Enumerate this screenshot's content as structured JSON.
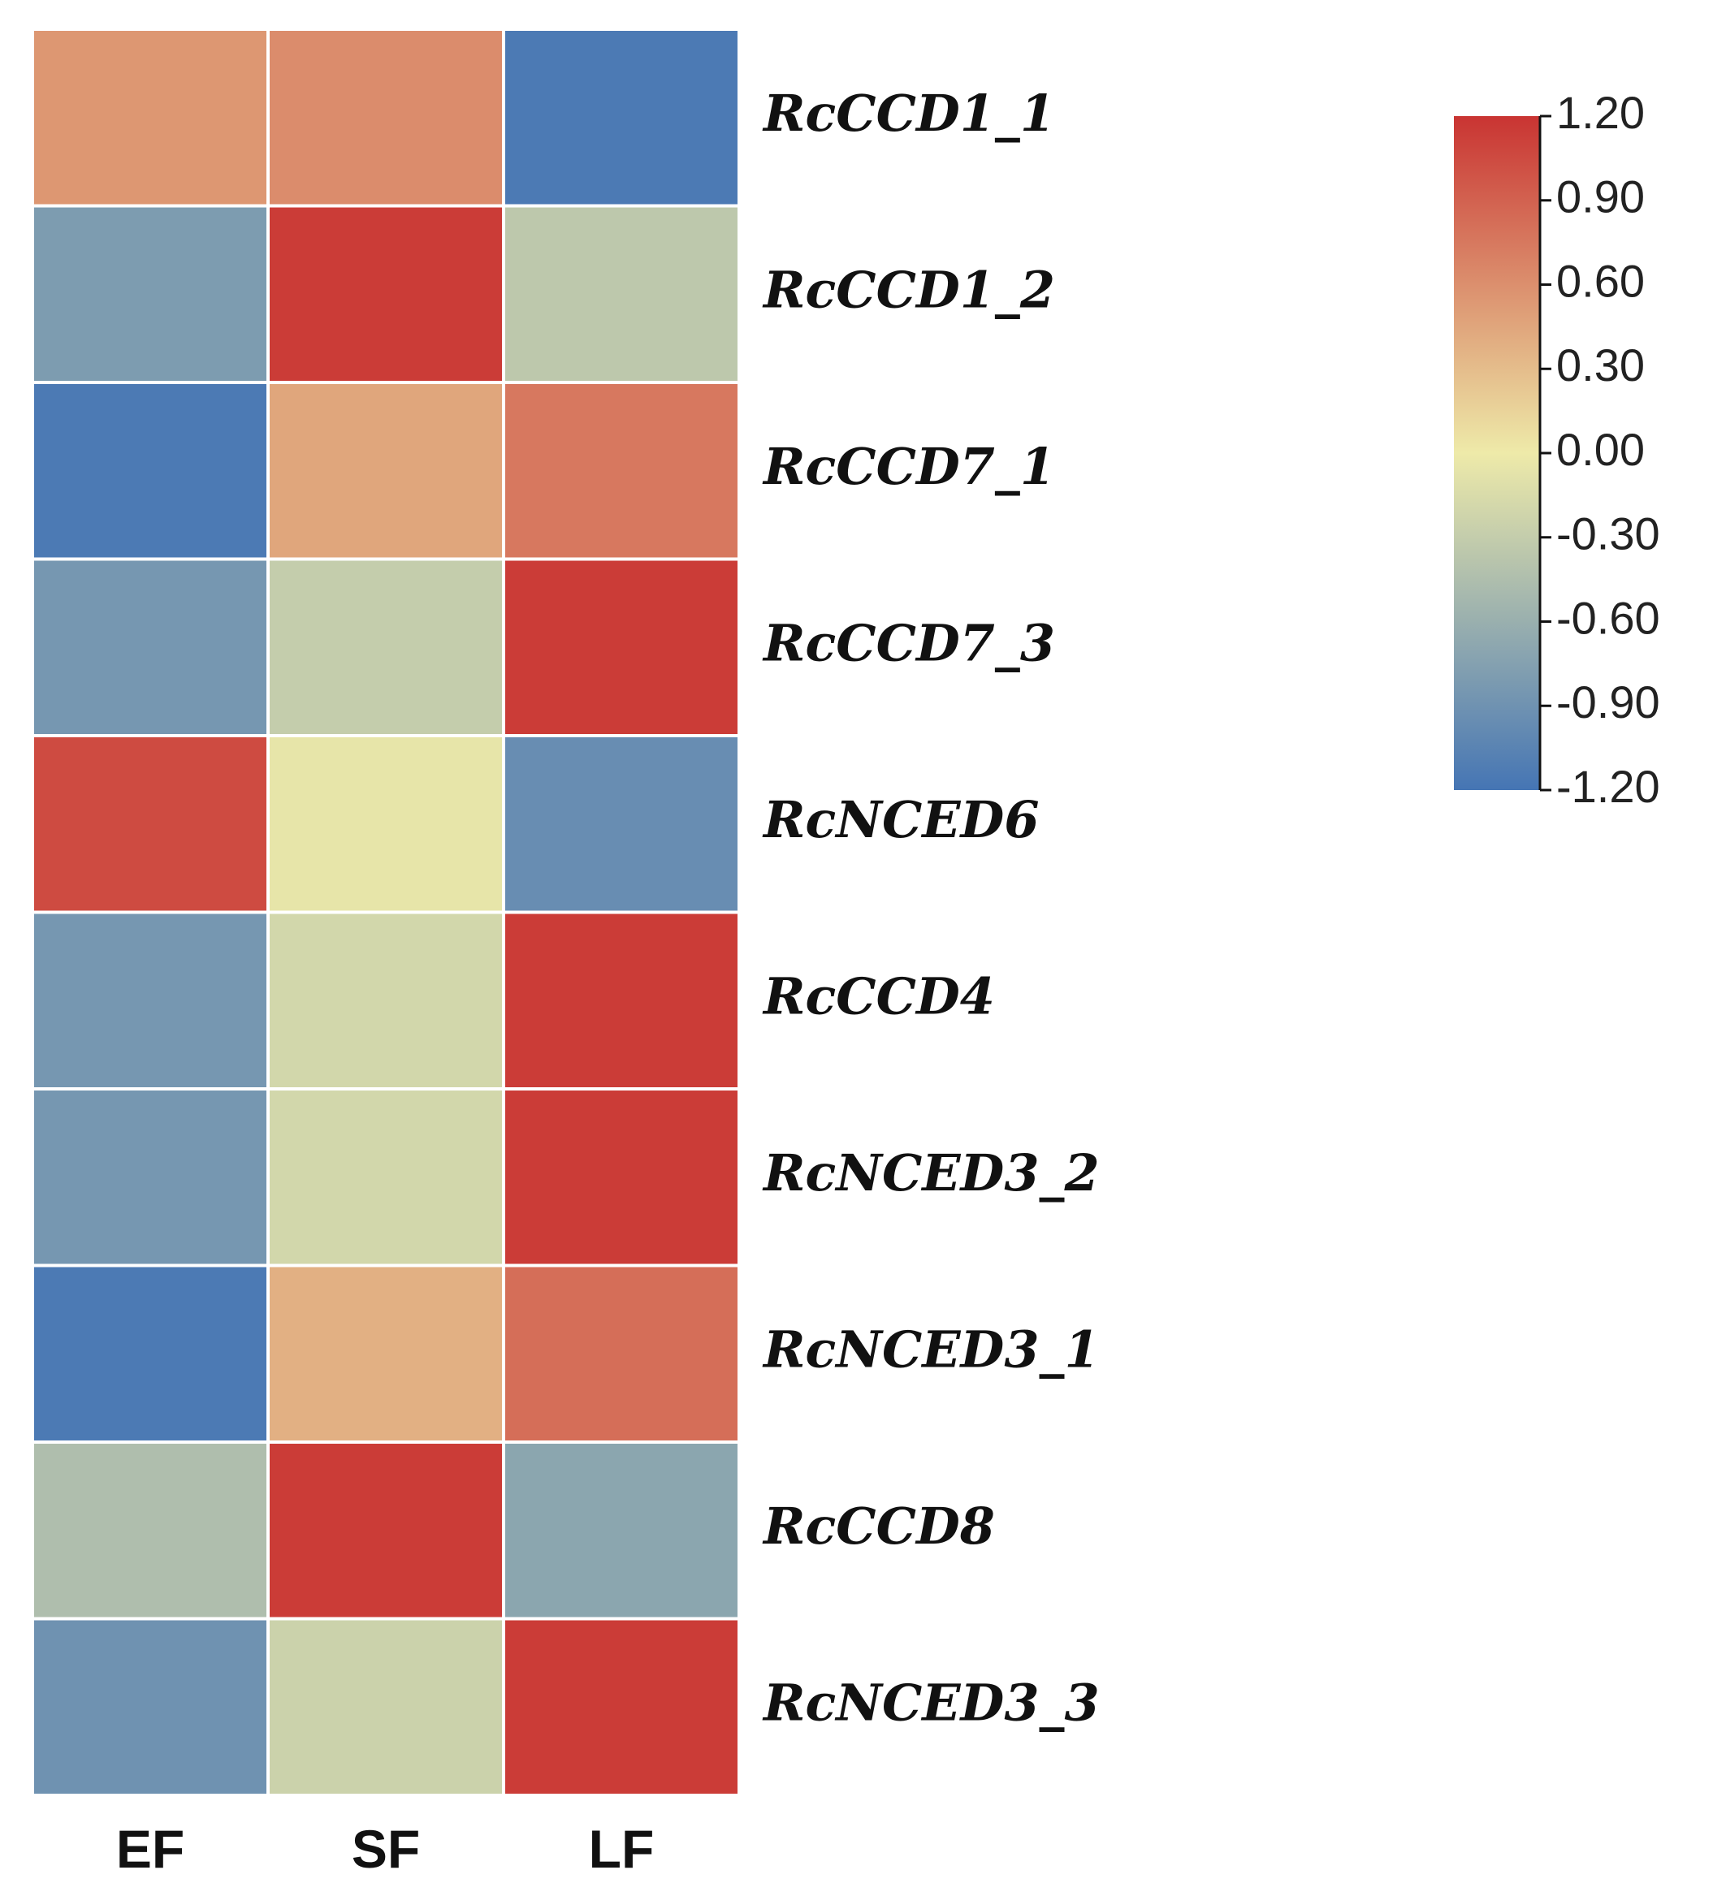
{
  "chart_data": {
    "type": "heatmap",
    "title": "",
    "columns": [
      "EF",
      "SF",
      "LF"
    ],
    "rows": [
      "RcCCD1_1",
      "RcCCD1_2",
      "RcCCD7_1",
      "RcCCD7_3",
      "RcNCED6",
      "RcCCD4",
      "RcNCED3_2",
      "RcNCED3_1",
      "RcCCD8",
      "RcNCED3_3"
    ],
    "values": [
      [
        0.55,
        0.62,
        -1.15
      ],
      [
        -0.8,
        1.15,
        -0.35
      ],
      [
        -1.15,
        0.45,
        0.75
      ],
      [
        -0.85,
        -0.3,
        1.15
      ],
      [
        1.05,
        -0.05,
        -0.95
      ],
      [
        -0.85,
        -0.2,
        1.15
      ],
      [
        -0.85,
        -0.2,
        1.15
      ],
      [
        -1.15,
        0.38,
        0.82
      ],
      [
        -0.45,
        1.15,
        -0.7
      ],
      [
        -0.9,
        -0.25,
        1.15
      ]
    ],
    "colorbar": {
      "min": -1.2,
      "max": 1.2,
      "ticks": [
        "1.20",
        "0.90",
        "0.60",
        "0.30",
        "0.00",
        "-0.30",
        "-0.60",
        "-0.90",
        "-1.20"
      ],
      "tick_values": [
        1.2,
        0.9,
        0.6,
        0.3,
        0.0,
        -0.3,
        -0.6,
        -0.9,
        -1.2
      ],
      "colors": {
        "low": "#4575b4",
        "mid": "#eeeaa9",
        "high": "#c93432"
      }
    }
  }
}
